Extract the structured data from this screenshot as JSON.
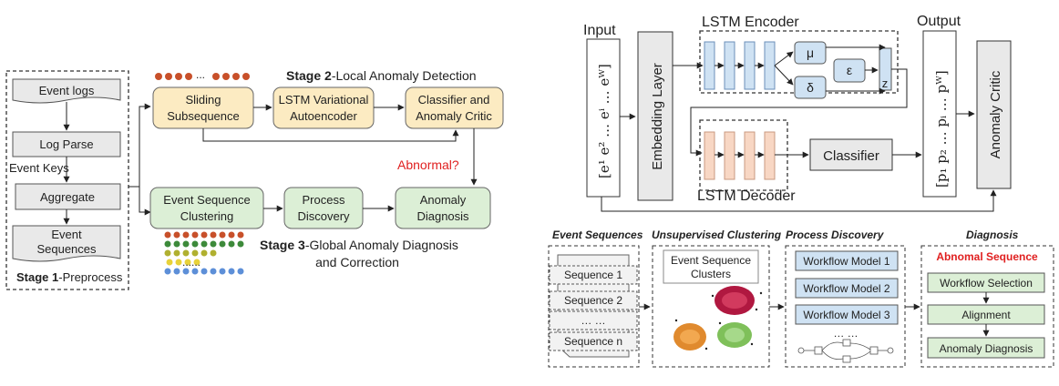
{
  "left": {
    "stage1": {
      "bold": "Stage 1",
      "rest": "-Preprocess"
    },
    "col": [
      "Event logs",
      "Log Parse",
      "Aggregate",
      "Event",
      "Sequences"
    ],
    "event_keys": "Event Keys",
    "stage2": {
      "bold": "Stage 2",
      "rest": "-Local Anomaly Detection"
    },
    "top_row": {
      "sliding": [
        "Sliding",
        "Subsequence"
      ],
      "lstm_vae": [
        "LSTM Variational",
        "Autoencoder"
      ],
      "classifier": [
        "Classifier and",
        "Anomaly Critic"
      ]
    },
    "abnormal": "Abnormal?",
    "bottom_row": {
      "clustering": [
        "Event Sequence",
        "Clustering"
      ],
      "discovery": [
        "Process",
        "Discovery"
      ],
      "diagnosis": [
        "Anomaly",
        "Diagnosis"
      ]
    },
    "stage3": {
      "bold": "Stage 3",
      "rest": "-Global Anomaly Diagnosis",
      "line2": "and Correction"
    },
    "ellipsis_top": "...",
    "ellipsis_bottom": "......"
  },
  "right": {
    "input": "Input",
    "output": "Output",
    "embedding": "Embedding Layer",
    "encoder": "LSTM Encoder",
    "decoder": "LSTM Decoder",
    "mu": "μ",
    "delta": "δ",
    "eps": "ε",
    "z": "z",
    "classifier": "Classifier",
    "critic": "Anomaly Critic",
    "bottom": {
      "h_seq": "Event Sequences",
      "h_clust": "Unsupervised Clustering",
      "h_pd": "Process Discovery",
      "h_diag": "Diagnosis",
      "sequences": [
        "Sequence 1",
        "Sequence 2",
        "… …",
        "Sequence n"
      ],
      "clusters_label": [
        "Event Sequence",
        "Clusters"
      ],
      "workflows": [
        "Workflow Model 1",
        "Workflow Model 2",
        "Workflow Model 3"
      ],
      "wf_ellipsis": "… …",
      "abn_seq": "Abnomal Sequence",
      "diag_steps": [
        "Workflow Selection",
        "Alignment",
        "Anomaly Diagnosis"
      ]
    }
  }
}
